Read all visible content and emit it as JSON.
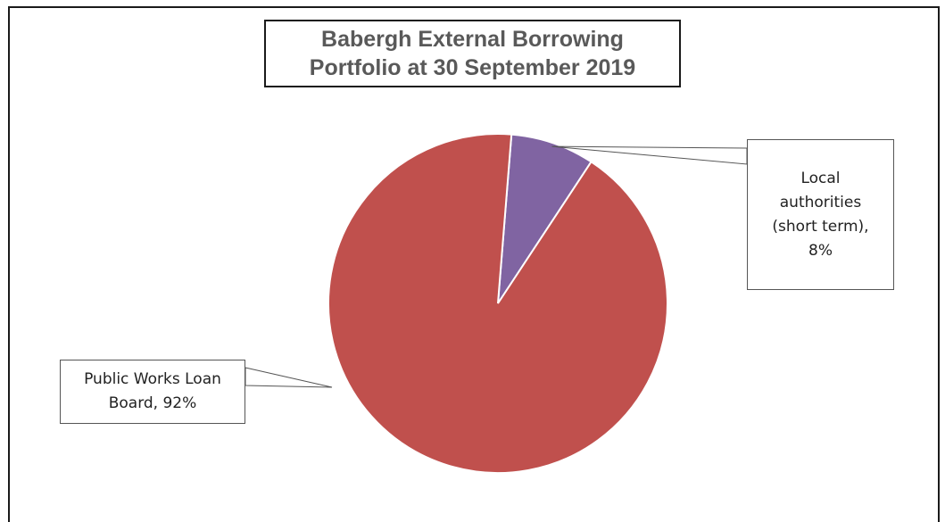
{
  "chart_data": {
    "type": "pie",
    "title": "Babergh External Borrowing Portfolio at 30 September 2019",
    "title_lines": [
      "Babergh External Borrowing",
      "Portfolio at 30 September 2019"
    ],
    "slices": [
      {
        "label": "Local authorities (short term)",
        "value": 8,
        "label_lines": [
          "Local",
          "authorities",
          "(short term),",
          "8%"
        ],
        "color": "#8064A2"
      },
      {
        "label": "Public Works Loan Board",
        "value": 92,
        "label_lines": [
          "Public Works Loan",
          "Board, 92%"
        ],
        "color": "#C0504D"
      }
    ],
    "legend": "none",
    "data_labels": "callouts with category name and percentage"
  }
}
